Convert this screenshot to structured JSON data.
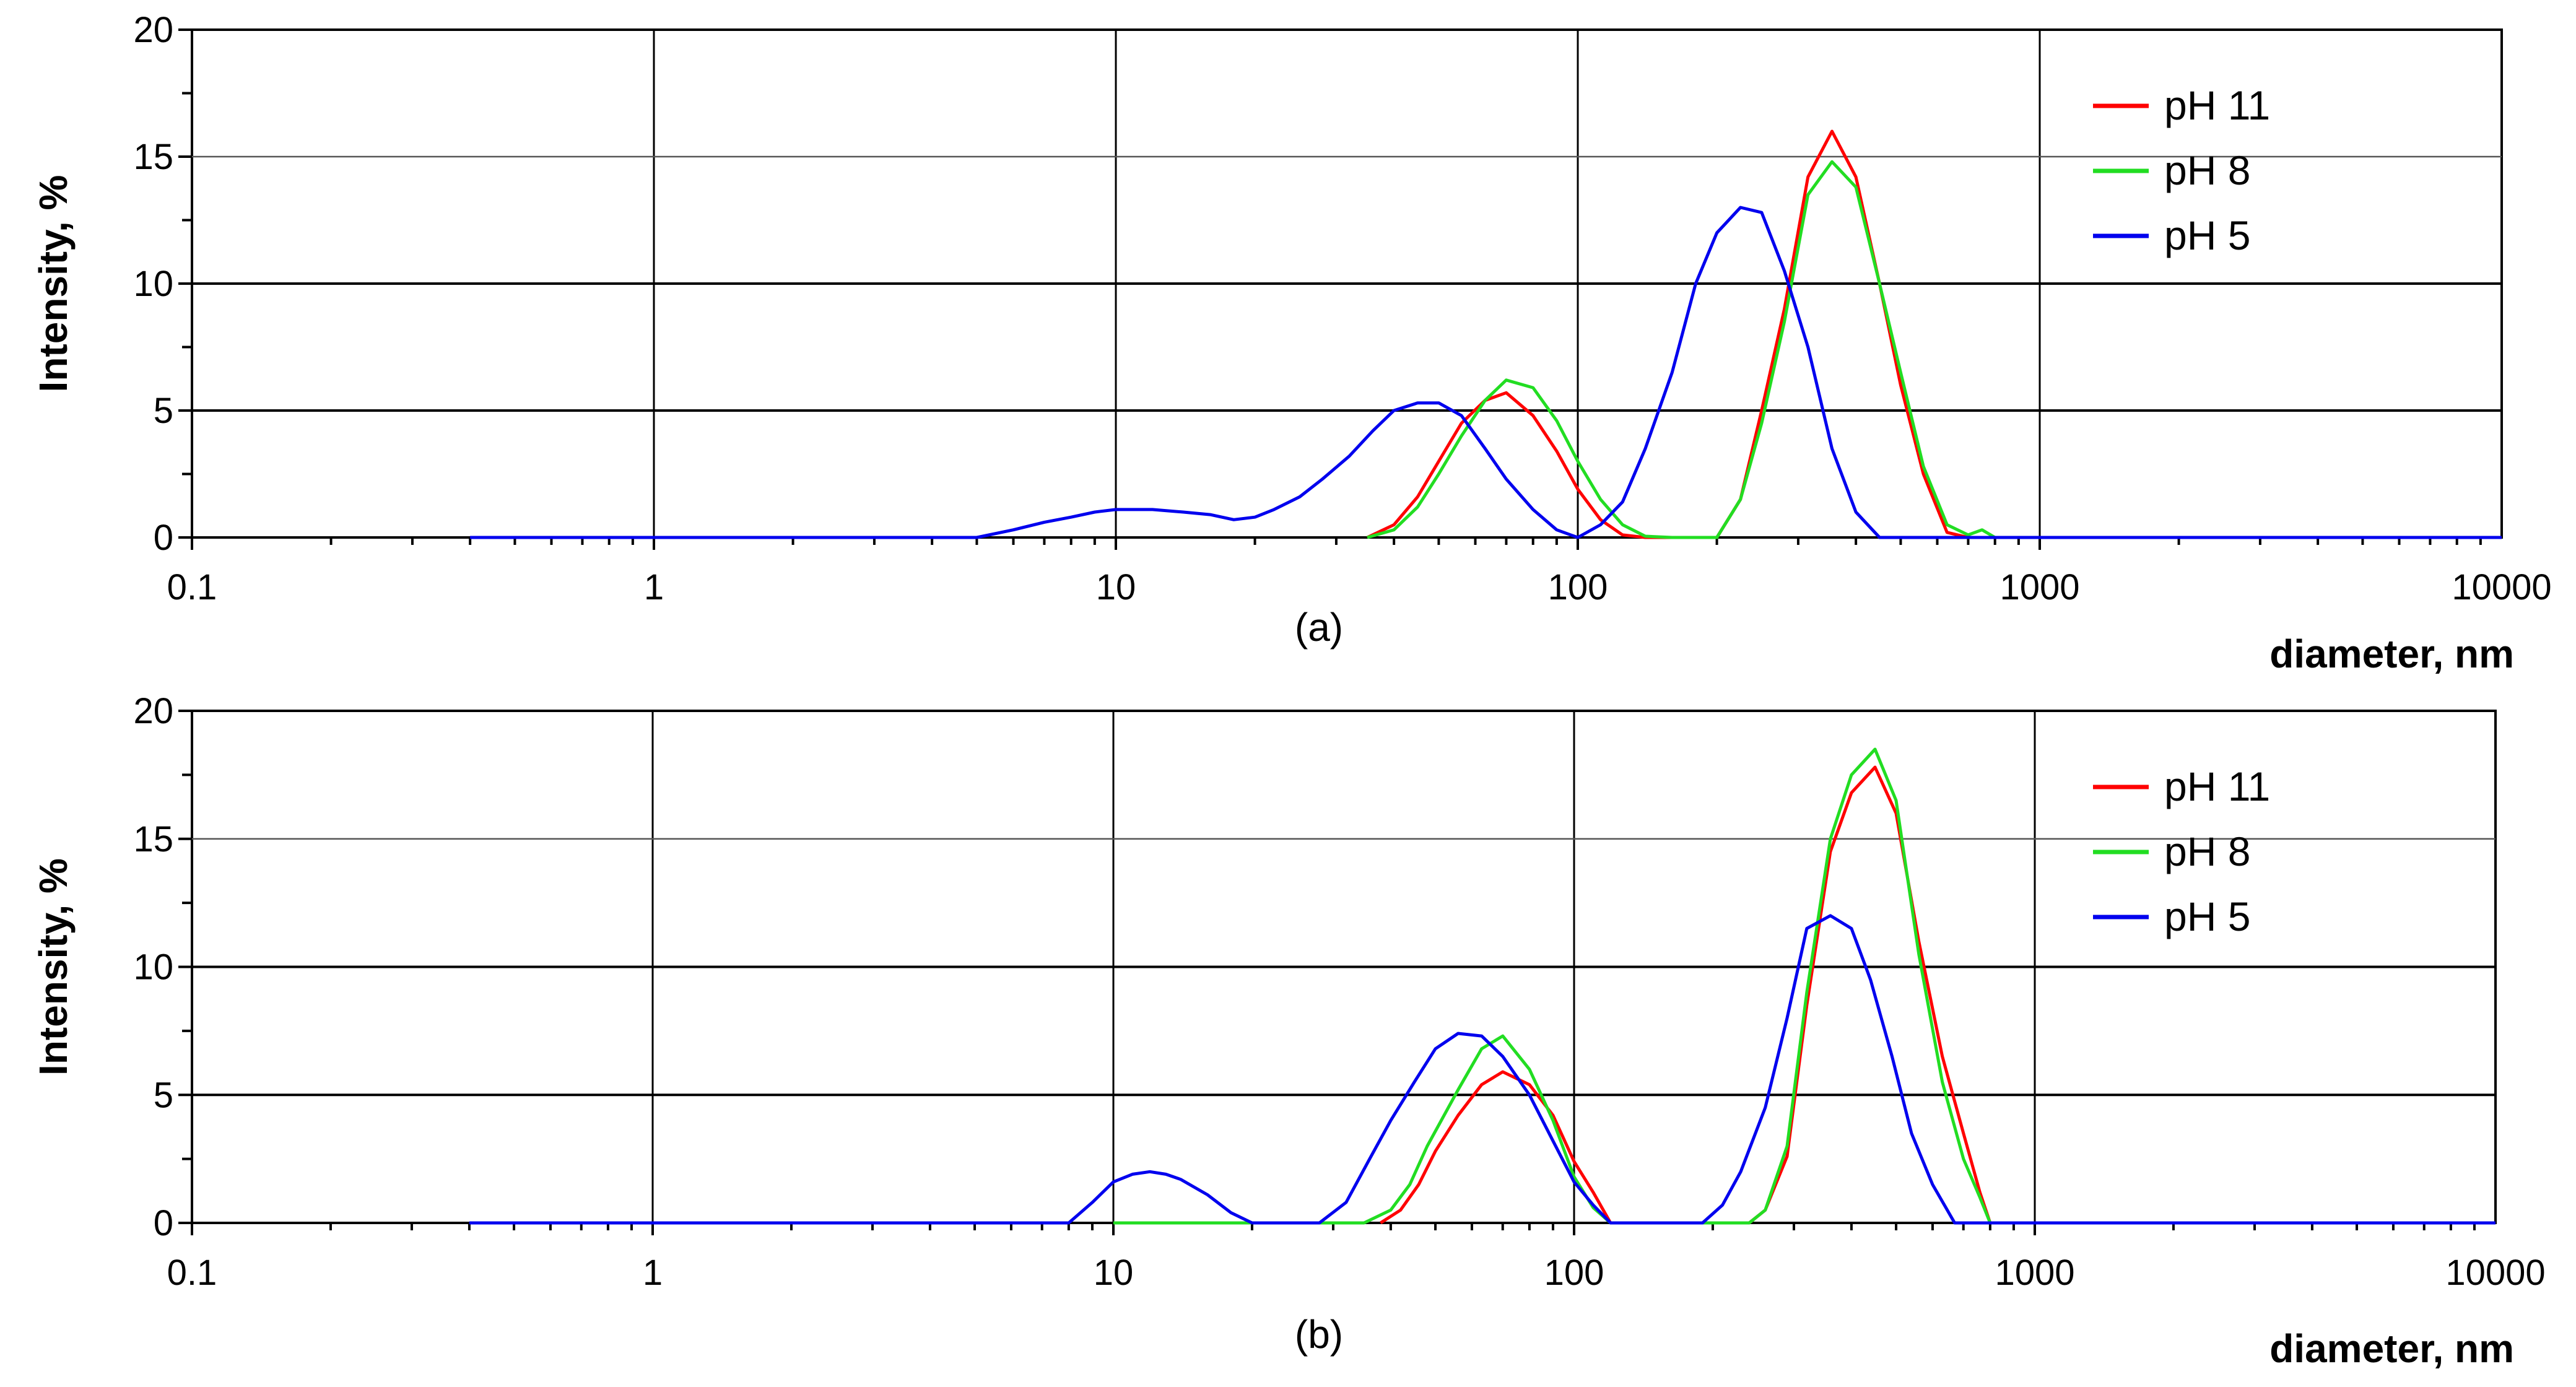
{
  "chart_data": [
    {
      "type": "line",
      "panel_label": "(a)",
      "xlabel": "diameter, nm",
      "ylabel": "Intensity, %",
      "xscale": "log",
      "xlim": [
        0.1,
        10000
      ],
      "ylim": [
        0,
        20
      ],
      "xticks": [
        "0.1",
        "1",
        "10",
        "100",
        "1000",
        "10000"
      ],
      "yticks": [
        "0",
        "5",
        "10",
        "15",
        "20"
      ],
      "grid": true,
      "legend_position": "top-right",
      "series": [
        {
          "name": "pH 11",
          "color": "#ff0000",
          "x": [
            35,
            40,
            45,
            50,
            56,
            63,
            70,
            80,
            90,
            100,
            112,
            125,
            140,
            160,
            180,
            200,
            225,
            250,
            280,
            315,
            355,
            400,
            450,
            500,
            560,
            630,
            700,
            750
          ],
          "y": [
            0,
            0.5,
            1.6,
            3.0,
            4.5,
            5.4,
            5.7,
            4.8,
            3.4,
            1.9,
            0.7,
            0.1,
            0,
            0,
            0,
            0,
            1.5,
            5,
            9,
            14.2,
            16,
            14.2,
            10,
            6,
            2.5,
            0.2,
            0,
            0
          ]
        },
        {
          "name": "pH 8",
          "color": "#22dd22",
          "x": [
            35,
            40,
            45,
            50,
            56,
            63,
            70,
            80,
            90,
            100,
            112,
            125,
            140,
            160,
            180,
            200,
            225,
            250,
            280,
            315,
            355,
            400,
            450,
            500,
            560,
            630,
            700,
            750,
            800
          ],
          "y": [
            0,
            0.3,
            1.2,
            2.5,
            4.0,
            5.4,
            6.2,
            5.9,
            4.6,
            3.0,
            1.5,
            0.5,
            0.05,
            0,
            0,
            0,
            1.5,
            4.5,
            8.5,
            13.5,
            14.8,
            13.8,
            10,
            6.5,
            2.8,
            0.5,
            0.1,
            0.3,
            0
          ]
        },
        {
          "name": "pH 5",
          "color": "#0000ee",
          "x": [
            0.4,
            5,
            6,
            7,
            8,
            9,
            10,
            11,
            12,
            14,
            16,
            18,
            20,
            22,
            25,
            28,
            32,
            36,
            40,
            45,
            50,
            56,
            63,
            70,
            80,
            90,
            100,
            112,
            125,
            140,
            160,
            180,
            200,
            225,
            250,
            280,
            315,
            355,
            400,
            450,
            10000
          ],
          "y": [
            0,
            0,
            0.3,
            0.6,
            0.8,
            1.0,
            1.1,
            1.1,
            1.1,
            1.0,
            0.9,
            0.7,
            0.8,
            1.1,
            1.6,
            2.3,
            3.2,
            4.2,
            5.0,
            5.3,
            5.3,
            4.8,
            3.5,
            2.3,
            1.1,
            0.3,
            0,
            0.5,
            1.4,
            3.5,
            6.5,
            10,
            12,
            13,
            12.8,
            10.5,
            7.5,
            3.5,
            1.0,
            0,
            0
          ]
        }
      ]
    },
    {
      "type": "line",
      "panel_label": "(b)",
      "xlabel": "diameter, nm",
      "ylabel": "Intensity, %",
      "xscale": "log",
      "xlim": [
        0.1,
        10000
      ],
      "ylim": [
        0,
        20
      ],
      "xticks": [
        "0.1",
        "1",
        "10",
        "100",
        "1000",
        "10000"
      ],
      "yticks": [
        "0",
        "5",
        "10",
        "15",
        "20"
      ],
      "grid": true,
      "legend_position": "top-right",
      "series": [
        {
          "name": "pH 11",
          "color": "#ff0000",
          "x": [
            38,
            42,
            46,
            50,
            56,
            63,
            70,
            80,
            90,
            100,
            110,
            120,
            240,
            260,
            290,
            320,
            360,
            400,
            450,
            500,
            560,
            630,
            700,
            760,
            800
          ],
          "y": [
            0,
            0.5,
            1.5,
            2.8,
            4.2,
            5.4,
            5.9,
            5.4,
            4.2,
            2.4,
            1.2,
            0,
            0,
            0.5,
            2.6,
            8.5,
            14.5,
            16.8,
            17.8,
            16,
            11,
            6.5,
            3.5,
            1.2,
            0
          ]
        },
        {
          "name": "pH 8",
          "color": "#22dd22",
          "x": [
            10,
            20,
            35,
            40,
            44,
            48,
            56,
            63,
            70,
            80,
            90,
            100,
            110,
            120,
            240,
            260,
            290,
            320,
            360,
            400,
            450,
            500,
            560,
            630,
            700,
            760,
            800
          ],
          "y": [
            0,
            0,
            0,
            0.5,
            1.5,
            3.0,
            5.2,
            6.8,
            7.3,
            6.0,
            4.0,
            1.8,
            0.6,
            0,
            0,
            0.5,
            3.0,
            9,
            15,
            17.5,
            18.5,
            16.5,
            10.5,
            5.5,
            2.5,
            1.0,
            0
          ]
        },
        {
          "name": "pH 5",
          "color": "#0000ee",
          "x": [
            0.4,
            8,
            9,
            10,
            11,
            12,
            13,
            14,
            16,
            18,
            20,
            28,
            32,
            36,
            40,
            45,
            50,
            56,
            63,
            70,
            80,
            90,
            100,
            110,
            120,
            190,
            210,
            230,
            260,
            290,
            320,
            360,
            400,
            440,
            490,
            540,
            600,
            670,
            10000
          ],
          "y": [
            0,
            0,
            0.8,
            1.6,
            1.9,
            2.0,
            1.9,
            1.7,
            1.1,
            0.4,
            0,
            0,
            0.8,
            2.5,
            4.0,
            5.5,
            6.8,
            7.4,
            7.3,
            6.5,
            5.0,
            3.2,
            1.6,
            0.7,
            0,
            0,
            0.7,
            2.0,
            4.5,
            8.0,
            11.5,
            12,
            11.5,
            9.5,
            6.5,
            3.5,
            1.5,
            0,
            0
          ]
        }
      ]
    }
  ]
}
